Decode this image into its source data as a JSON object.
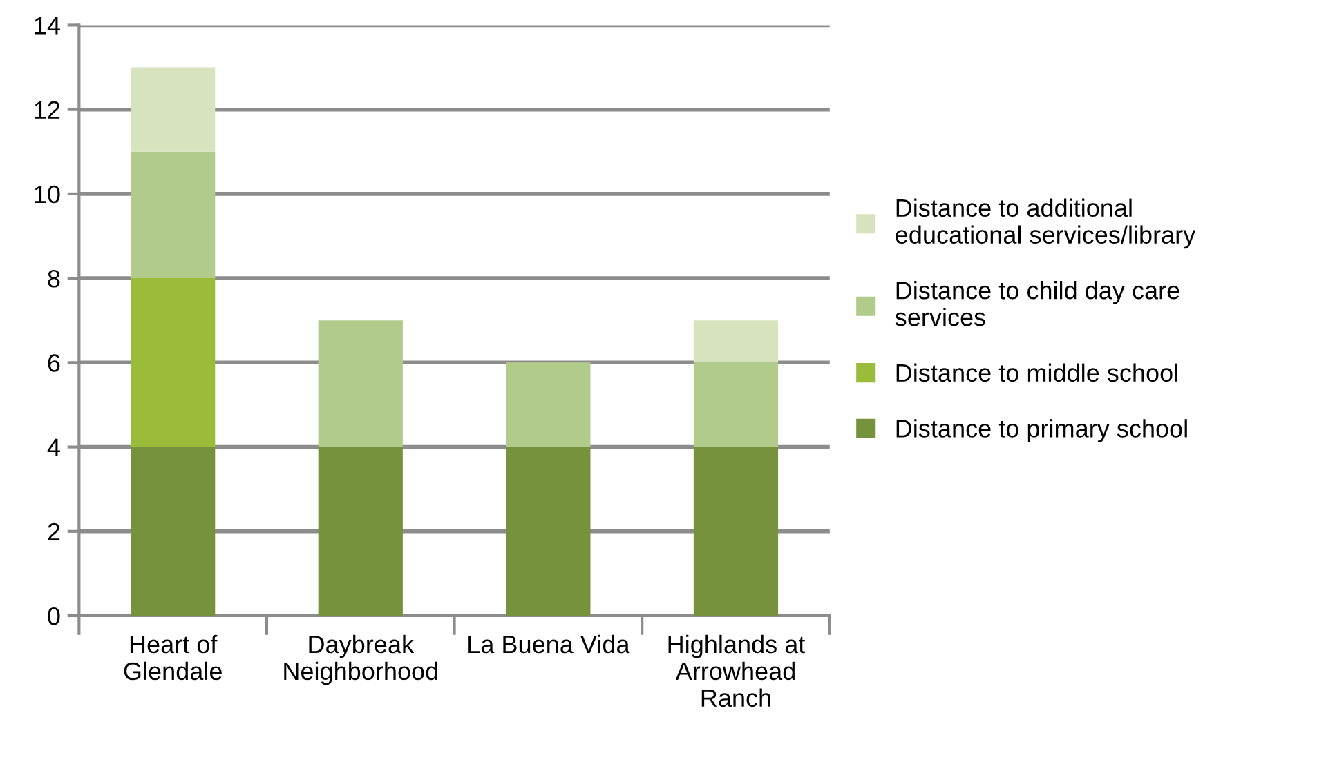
{
  "chart_data": {
    "type": "bar",
    "stacked": true,
    "categories": [
      "Heart of\nGlendale",
      "Daybreak\nNeighborhood",
      "La Buena Vida",
      "Highlands at\nArrowhead\nRanch"
    ],
    "series": [
      {
        "name": "Distance to primary school",
        "color": "#76923c",
        "values": [
          4,
          4,
          4,
          4
        ]
      },
      {
        "name": "Distance to middle school",
        "color": "#9bbb3b",
        "values": [
          4,
          0,
          0,
          0
        ]
      },
      {
        "name": "Distance to child day care\nservices",
        "color": "#b1cc8a",
        "values": [
          3,
          3,
          2,
          2
        ]
      },
      {
        "name": "Distance to additional\neducational services/library",
        "color": "#d6e3bc",
        "values": [
          2,
          0,
          0,
          1
        ]
      }
    ],
    "ylim": [
      0,
      14
    ],
    "yticks": [
      0,
      2,
      4,
      6,
      8,
      10,
      12,
      14
    ],
    "grid": "y",
    "legend": "right"
  }
}
